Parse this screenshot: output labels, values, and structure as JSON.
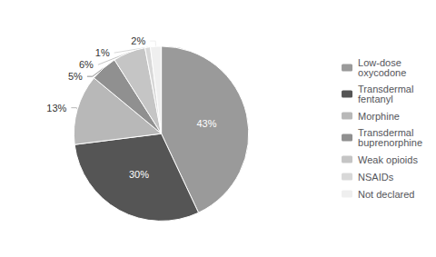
{
  "chart_data": {
    "type": "pie",
    "categories": [
      "Low-dose\noxycodone",
      "Transdermal\nfentanyl",
      "Morphine",
      "Transdermal\nbuprenorphine",
      "Weak opioids",
      "NSAIDs",
      "Not declared"
    ],
    "values": [
      43,
      30,
      13,
      5,
      6,
      1,
      2
    ],
    "value_labels": [
      "43%",
      "30%",
      "13%",
      "5%",
      "6%",
      "1%",
      "2%"
    ],
    "colors": [
      "#9a9a9a",
      "#555555",
      "#b8b8b8",
      "#909090",
      "#c5c5c5",
      "#d8d8d8",
      "#efefef"
    ],
    "data_labels": true,
    "legend": "right"
  }
}
